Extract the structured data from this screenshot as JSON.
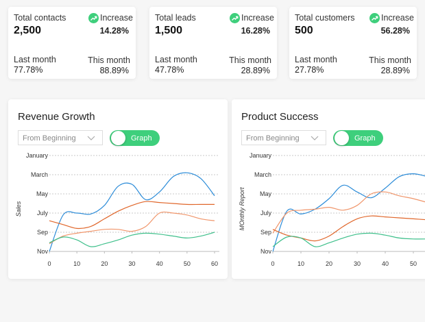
{
  "cards": [
    {
      "label": "Total contacts",
      "value": "2,500",
      "badge": "Increase",
      "change": "14.28%",
      "last_label": "Last month",
      "last_value": "77.78%",
      "this_label": "This month",
      "this_value": "88.89%"
    },
    {
      "label": "Total leads",
      "value": "1,500",
      "badge": "Increase",
      "change": "16.28%",
      "last_label": "Last month",
      "last_value": "47.78%",
      "this_label": "This month",
      "this_value": "28.89%"
    },
    {
      "label": "Total customers",
      "value": "500",
      "badge": "Increase",
      "change": "56.28%",
      "last_label": "Last month",
      "last_value": "27.78%",
      "this_label": "This month",
      "this_value": "28.89%"
    }
  ],
  "chart_data": [
    {
      "type": "line",
      "title": "Revenue Growth",
      "dropdown": "From Beginning",
      "toggle": "Graph",
      "y_label": "Sales",
      "x": [
        0,
        5,
        10,
        15,
        20,
        25,
        30,
        35,
        40,
        45,
        50,
        55,
        60
      ],
      "xlim": [
        0,
        60
      ],
      "xticks": [
        0,
        10,
        20,
        30,
        40,
        50,
        60
      ],
      "ylim": [
        0,
        5
      ],
      "yticks": [
        {
          "value": 5,
          "label": "January"
        },
        {
          "value": 4,
          "label": "March"
        },
        {
          "value": 3,
          "label": "May"
        },
        {
          "value": 2,
          "label": "July"
        },
        {
          "value": 1,
          "label": "Sep"
        },
        {
          "value": 0,
          "label": "Nov"
        }
      ],
      "grid": true,
      "series": [
        {
          "color": "#2a8bd8",
          "values": [
            0,
            1.9,
            2.0,
            1.95,
            2.4,
            3.4,
            3.5,
            2.7,
            3.1,
            3.9,
            4.1,
            3.8,
            2.9
          ]
        },
        {
          "color": "#e0662a",
          "values": [
            1.6,
            1.4,
            1.2,
            1.3,
            1.7,
            2.1,
            2.4,
            2.6,
            2.55,
            2.5,
            2.45,
            2.45,
            2.45
          ]
        },
        {
          "color": "#f0956a",
          "values": [
            0.4,
            0.8,
            0.95,
            1.05,
            1.15,
            1.15,
            1.05,
            1.3,
            2.0,
            2.0,
            1.9,
            1.7,
            1.6
          ]
        },
        {
          "color": "#3dbf8a",
          "values": [
            0.45,
            0.75,
            0.6,
            0.25,
            0.4,
            0.6,
            0.85,
            0.95,
            0.9,
            0.8,
            0.7,
            0.8,
            1.0
          ]
        }
      ]
    },
    {
      "type": "line",
      "title": "Product Success",
      "dropdown": "From Beginning",
      "toggle": "Graph",
      "y_label": "MOnthly Report",
      "x": [
        0,
        5,
        10,
        15,
        20,
        25,
        30,
        35,
        40,
        45,
        50,
        55
      ],
      "xlim": [
        0,
        55
      ],
      "xticks": [
        0,
        10,
        20,
        30,
        40,
        50
      ],
      "ylim": [
        0,
        5
      ],
      "yticks": [
        {
          "value": 5,
          "label": "January"
        },
        {
          "value": 4,
          "label": "March"
        },
        {
          "value": 3,
          "label": "May"
        },
        {
          "value": 2,
          "label": "July"
        },
        {
          "value": 1,
          "label": "Sep"
        },
        {
          "value": 0,
          "label": "Nov"
        }
      ],
      "grid": true,
      "series": [
        {
          "color": "#2a8bd8",
          "values": [
            0,
            2.1,
            1.95,
            2.2,
            2.75,
            3.45,
            3.1,
            2.8,
            3.3,
            3.9,
            4.05,
            3.9
          ]
        },
        {
          "color": "#f0956a",
          "values": [
            0.95,
            2.0,
            2.15,
            2.2,
            2.3,
            2.15,
            2.4,
            3.0,
            3.1,
            2.9,
            2.75,
            2.55
          ]
        },
        {
          "color": "#e0662a",
          "values": [
            1.15,
            0.85,
            0.7,
            0.55,
            0.8,
            1.3,
            1.7,
            1.85,
            1.8,
            1.75,
            1.7,
            1.65
          ]
        },
        {
          "color": "#3dbf8a",
          "values": [
            0.25,
            0.75,
            0.7,
            0.25,
            0.45,
            0.7,
            0.9,
            0.95,
            0.85,
            0.7,
            0.65,
            0.65
          ]
        }
      ]
    }
  ]
}
